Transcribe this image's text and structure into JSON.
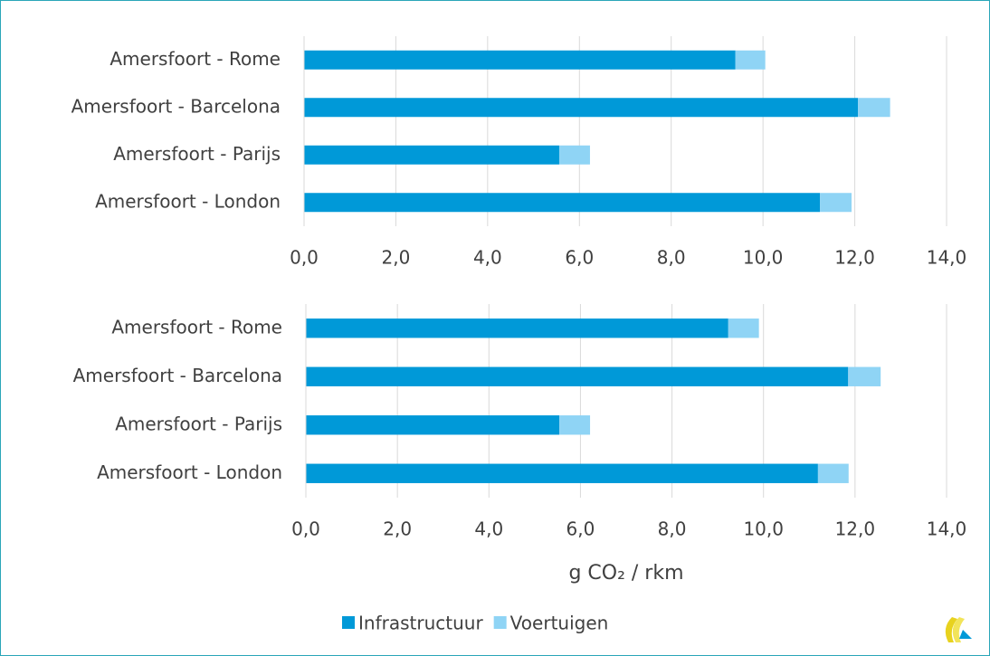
{
  "chart_data": [
    {
      "type": "stacked-bar-horizontal",
      "categories": [
        "Amersfoort - Rome",
        "Amersfoort - Barcelona",
        "Amersfoort - Parijs",
        "Amersfoort - London"
      ],
      "series": [
        {
          "name": "Infrastructuur",
          "color": "#0099d8",
          "values": [
            9.4,
            12.07,
            5.56,
            11.24
          ]
        },
        {
          "name": "Voertuigen",
          "color": "#8fd4f5",
          "values": [
            0.65,
            0.7,
            0.67,
            0.69
          ]
        }
      ],
      "xlim": [
        0,
        14
      ],
      "xticks": [
        {
          "value": 0,
          "label": "0,0"
        },
        {
          "value": 2,
          "label": "2,0"
        },
        {
          "value": 4,
          "label": "4,0"
        },
        {
          "value": 6,
          "label": "6,0"
        },
        {
          "value": 8,
          "label": "8,0"
        },
        {
          "value": 10,
          "label": "10,0"
        },
        {
          "value": 12,
          "label": "12,0"
        },
        {
          "value": 14,
          "label": "14,0"
        }
      ],
      "grid": true
    },
    {
      "type": "stacked-bar-horizontal",
      "categories": [
        "Amersfoort - Rome",
        "Amersfoort - Barcelona",
        "Amersfoort - Parijs",
        "Amersfoort - London"
      ],
      "series": [
        {
          "name": "Infrastructuur",
          "color": "#0099d8",
          "values": [
            9.23,
            11.85,
            5.54,
            11.19
          ]
        },
        {
          "name": "Voertuigen",
          "color": "#8fd4f5",
          "values": [
            0.67,
            0.71,
            0.67,
            0.67
          ]
        }
      ],
      "xlim": [
        0,
        14
      ],
      "xticks": [
        {
          "value": 0,
          "label": "0,0"
        },
        {
          "value": 2,
          "label": "2,0"
        },
        {
          "value": 4,
          "label": "4,0"
        },
        {
          "value": 6,
          "label": "6,0"
        },
        {
          "value": 8,
          "label": "8,0"
        },
        {
          "value": 10,
          "label": "10,0"
        },
        {
          "value": 12,
          "label": "12,0"
        },
        {
          "value": 14,
          "label": "14,0"
        }
      ],
      "xlabel": "g CO₂ / rkm",
      "grid": true
    }
  ]
}
